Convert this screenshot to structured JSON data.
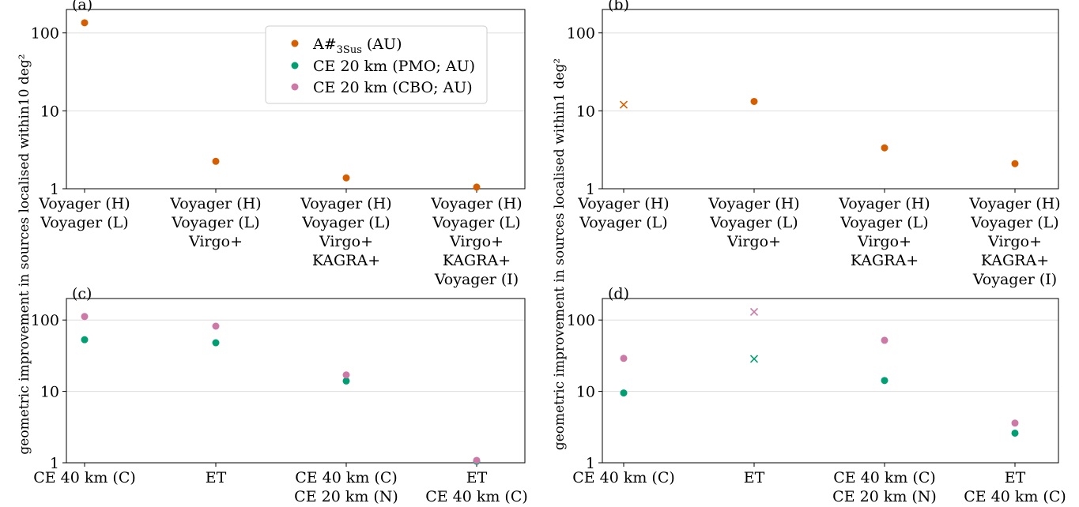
{
  "colors": {
    "a_sharp": "#d55e00",
    "ce_pmo": "#009e73",
    "ce_cbo": "#cc79a7",
    "grid": "#dddddd",
    "axis": "#000000"
  },
  "ylabels": {
    "top": "geometric improvement in sources localised within10 deg²",
    "right": "geometric improvement in sources localised within1 deg²"
  },
  "legend": {
    "items": [
      {
        "label": "A#",
        "sub": "3Sus",
        "suffix": " (AU)",
        "color_key": "a_sharp"
      },
      {
        "label": "CE 20 km (PMO; AU)",
        "color_key": "ce_pmo"
      },
      {
        "label": "CE 20 km (CBO; AU)",
        "color_key": "ce_cbo"
      }
    ]
  },
  "chart_data": [
    {
      "panel": "(a)",
      "type": "scatter",
      "yscale": "log",
      "ylim": [
        1,
        200
      ],
      "yticks": [
        "1",
        "10",
        "100"
      ],
      "categories": [
        [
          "Voyager (H)",
          "Voyager (L)"
        ],
        [
          "Voyager (H)",
          "Voyager (L)",
          "Virgo+"
        ],
        [
          "Voyager (H)",
          "Voyager (L)",
          "Virgo+",
          "KAGRA+"
        ],
        [
          "Voyager (H)",
          "Voyager (L)",
          "Virgo+",
          "KAGRA+",
          "Voyager (I)"
        ]
      ],
      "series": [
        {
          "name": "A#3Sus (AU)",
          "color_key": "a_sharp",
          "values": [
            135,
            2.25,
            1.38,
            1.05
          ],
          "markers": [
            "o",
            "o",
            "o",
            "o"
          ]
        }
      ],
      "legend": "top-right"
    },
    {
      "panel": "(b)",
      "type": "scatter",
      "yscale": "log",
      "ylim": [
        1,
        200
      ],
      "yticks": [
        "1",
        "10",
        "100"
      ],
      "categories": [
        [
          "Voyager (H)",
          "Voyager (L)"
        ],
        [
          "Voyager (H)",
          "Voyager (L)",
          "Virgo+"
        ],
        [
          "Voyager (H)",
          "Voyager (L)",
          "Virgo+",
          "KAGRA+"
        ],
        [
          "Voyager (H)",
          "Voyager (L)",
          "Virgo+",
          "KAGRA+",
          "Voyager (I)"
        ]
      ],
      "series": [
        {
          "name": "A#3Sus (AU)",
          "color_key": "a_sharp",
          "values": [
            12,
            13.2,
            3.35,
            2.1
          ],
          "markers": [
            "x",
            "o",
            "o",
            "o"
          ]
        }
      ]
    },
    {
      "panel": "(c)",
      "type": "scatter",
      "yscale": "log",
      "ylim": [
        1,
        200
      ],
      "yticks": [
        "1",
        "10",
        "100"
      ],
      "categories": [
        [
          "CE 40 km (C)"
        ],
        [
          "ET"
        ],
        [
          "CE 40 km (C)",
          "CE 20 km (N)"
        ],
        [
          "ET",
          "CE 40 km (C)"
        ]
      ],
      "series": [
        {
          "name": "CE 20 km (PMO; AU)",
          "color_key": "ce_pmo",
          "values": [
            53,
            48,
            14,
            1.05
          ],
          "markers": [
            "o",
            "o",
            "o",
            "o"
          ]
        },
        {
          "name": "CE 20 km (CBO; AU)",
          "color_key": "ce_cbo",
          "values": [
            112,
            82,
            17,
            1.08
          ],
          "markers": [
            "o",
            "o",
            "o",
            "o"
          ]
        }
      ]
    },
    {
      "panel": "(d)",
      "type": "scatter",
      "yscale": "log",
      "ylim": [
        1,
        200
      ],
      "yticks": [
        "1",
        "10",
        "100"
      ],
      "categories": [
        [
          "CE 40 km (C)"
        ],
        [
          "ET"
        ],
        [
          "CE 40 km (C)",
          "CE 20 km (N)"
        ],
        [
          "ET",
          "CE 40 km (C)"
        ]
      ],
      "series": [
        {
          "name": "CE 20 km (PMO; AU)",
          "color_key": "ce_pmo",
          "values": [
            9.5,
            28.5,
            14.2,
            2.6
          ],
          "markers": [
            "o",
            "x",
            "o",
            "o"
          ]
        },
        {
          "name": "CE 20 km (CBO; AU)",
          "color_key": "ce_cbo",
          "values": [
            29,
            130,
            52,
            3.6
          ],
          "markers": [
            "o",
            "x",
            "o",
            "o"
          ]
        }
      ]
    }
  ]
}
